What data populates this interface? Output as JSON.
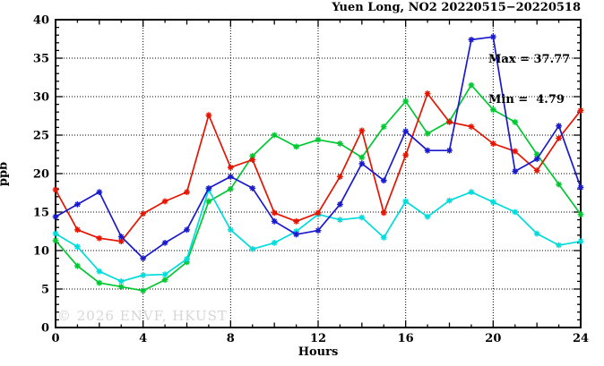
{
  "header": {
    "title": "Yuen Long, NO2 20220515−20220518"
  },
  "legend": {
    "max_label": "Max = 37.77",
    "min_label": "Min =  4.79"
  },
  "watermark": "© 2026 ENVF, HKUST",
  "axes": {
    "ylabel": "ppb",
    "xlabel": "Hours"
  },
  "chart_data": {
    "type": "line",
    "title": "Yuen Long, NO2 20220515−20220518",
    "xlabel": "Hours",
    "ylabel": "ppb",
    "xlim": [
      0,
      24
    ],
    "ylim": [
      0,
      40
    ],
    "x_major_ticks": [
      0,
      4,
      8,
      12,
      16,
      20,
      24
    ],
    "y_major_ticks": [
      0,
      5,
      10,
      15,
      20,
      25,
      30,
      35,
      40
    ],
    "grid": true,
    "legend_position": "top-right-inside",
    "stats": {
      "max": 37.77,
      "min": 4.79
    },
    "x": [
      0,
      1,
      2,
      3,
      4,
      5,
      6,
      7,
      8,
      9,
      10,
      11,
      12,
      13,
      14,
      15,
      16,
      17,
      18,
      19,
      20,
      21,
      22,
      23,
      24
    ],
    "series": [
      {
        "name": "series-green",
        "color": "#00c832",
        "marker": "asterisk",
        "values": [
          11.3,
          8.0,
          5.8,
          5.3,
          4.79,
          6.2,
          8.5,
          16.4,
          18.0,
          22.3,
          25.0,
          23.5,
          24.4,
          23.9,
          22.1,
          26.1,
          29.4,
          25.2,
          26.8,
          31.5,
          28.3,
          26.7,
          22.5,
          18.6,
          14.7
        ]
      },
      {
        "name": "series-cyan",
        "color": "#00dcdc",
        "marker": "asterisk",
        "values": [
          12.2,
          10.5,
          7.3,
          6.0,
          6.8,
          6.9,
          8.9,
          17.9,
          12.7,
          10.2,
          11.0,
          12.5,
          14.7,
          14.0,
          14.3,
          11.7,
          16.4,
          14.4,
          16.5,
          17.6,
          16.3,
          15.0,
          12.2,
          10.7,
          11.2
        ]
      },
      {
        "name": "series-red",
        "color": "#e51400",
        "marker": "asterisk",
        "values": [
          17.9,
          12.7,
          11.6,
          11.2,
          14.8,
          16.4,
          17.6,
          27.6,
          20.8,
          21.8,
          14.9,
          13.8,
          14.9,
          19.6,
          25.6,
          14.9,
          22.4,
          30.4,
          26.7,
          26.1,
          23.9,
          22.9,
          20.4,
          24.6,
          28.2
        ]
      },
      {
        "name": "series-blue",
        "color": "#1a1acd",
        "marker": "asterisk",
        "values": [
          14.4,
          16.0,
          17.6,
          11.8,
          9.0,
          11.0,
          12.7,
          18.1,
          19.6,
          18.1,
          13.8,
          12.1,
          12.6,
          16.0,
          21.3,
          19.1,
          25.5,
          23.0,
          23.0,
          37.4,
          37.77,
          20.3,
          21.9,
          26.2,
          18.2
        ]
      }
    ]
  }
}
